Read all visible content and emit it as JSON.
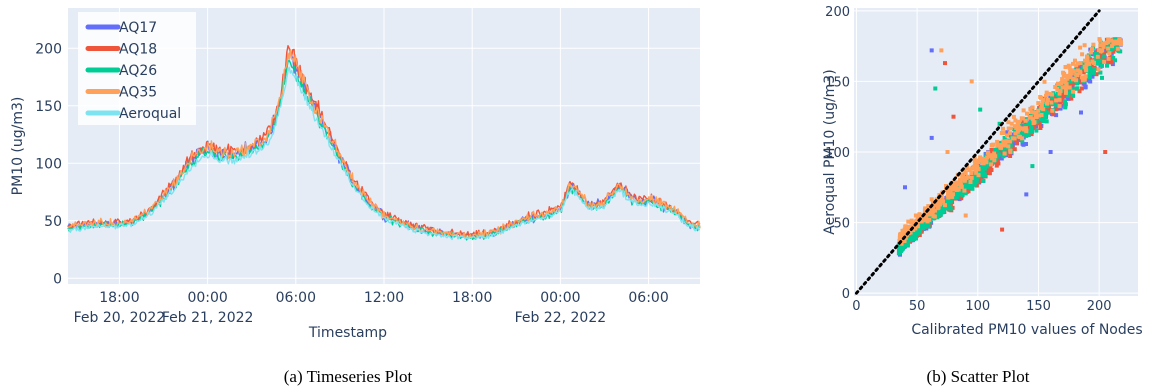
{
  "colors": {
    "plot_bg": "#E5ECF6",
    "grid": "#FFFFFF",
    "AQ17": "#636EFA",
    "AQ18": "#EF553B",
    "AQ26": "#00CC96",
    "AQ35": "#FFA15A",
    "Aeroqual": "#7EE3F0",
    "identity_line": "#000000"
  },
  "chart_data": [
    {
      "type": "line",
      "caption": "(a) Timeseries Plot",
      "xlabel": "Timestamp",
      "ylabel": "PM10 (ug/m3)",
      "ylim": [
        -5,
        235
      ],
      "yticks": [
        0,
        50,
        100,
        150,
        200
      ],
      "xlim": [
        14.5,
        57.5
      ],
      "x_unit": "hours since Feb 20, 2022 00:00",
      "xticks": [
        {
          "x": 18,
          "label": "18:00",
          "sub": "Feb 20, 2022"
        },
        {
          "x": 24,
          "label": "00:00",
          "sub": "Feb 21, 2022"
        },
        {
          "x": 30,
          "label": "06:00",
          "sub": ""
        },
        {
          "x": 36,
          "label": "12:00",
          "sub": ""
        },
        {
          "x": 42,
          "label": "18:00",
          "sub": ""
        },
        {
          "x": 48,
          "label": "00:00",
          "sub": "Feb 22, 2022"
        },
        {
          "x": 54,
          "label": "06:00",
          "sub": ""
        }
      ],
      "legend_position": "top-left",
      "grid": true,
      "series": [
        {
          "name": "AQ17",
          "offset": 4,
          "noise": 6
        },
        {
          "name": "AQ18",
          "offset": 6,
          "noise": 6
        },
        {
          "name": "AQ26",
          "offset": 2,
          "noise": 5
        },
        {
          "name": "AQ35",
          "offset": 5,
          "noise": 6
        },
        {
          "name": "Aeroqual",
          "offset": 0,
          "noise": 4
        }
      ],
      "x": [
        14.5,
        16,
        18,
        19,
        20,
        21,
        22,
        23,
        24,
        25,
        26,
        27,
        28,
        28.5,
        29,
        29.5,
        30,
        31,
        32,
        33,
        34,
        35,
        36,
        38,
        40,
        42,
        43,
        44,
        45,
        46,
        47,
        48,
        48.7,
        49.3,
        50,
        51,
        52,
        52.7,
        53.3,
        54,
        55,
        56,
        56.7,
        57.5
      ],
      "baseline": [
        42,
        45,
        45,
        47,
        55,
        68,
        82,
        100,
        108,
        103,
        103,
        108,
        115,
        130,
        150,
        185,
        175,
        148,
        125,
        100,
        78,
        63,
        52,
        42,
        37,
        35,
        36,
        40,
        46,
        50,
        53,
        57,
        78,
        70,
        60,
        62,
        77,
        68,
        63,
        65,
        60,
        55,
        45,
        43
      ]
    },
    {
      "type": "scatter",
      "caption": "(b) Scatter Plot",
      "xlabel": "Calibrated PM10 values of Nodes",
      "ylabel": "Aeroqual PM10 (ug/m3)",
      "xlim": [
        -2,
        232
      ],
      "ylim": [
        -2,
        202
      ],
      "xticks": [
        0,
        50,
        100,
        150,
        200
      ],
      "yticks": [
        0,
        50,
        100,
        150,
        200
      ],
      "grid": true,
      "identity_line": {
        "from": [
          0,
          0
        ],
        "to": [
          200,
          200
        ]
      },
      "series_order": [
        "AQ17",
        "AQ18",
        "AQ26",
        "AQ35"
      ],
      "main_band": {
        "x_start": 35,
        "x_end": 218,
        "y_start": 32,
        "y_end": 180,
        "spread": 12,
        "points_per_series": 450
      },
      "outliers": [
        [
          62,
          172,
          "AQ17"
        ],
        [
          70,
          172,
          "AQ35"
        ],
        [
          73,
          163,
          "AQ18"
        ],
        [
          65,
          145,
          "AQ26"
        ],
        [
          62,
          110,
          "AQ17"
        ],
        [
          75,
          100,
          "AQ35"
        ],
        [
          110,
          85,
          "AQ18"
        ],
        [
          118,
          120,
          "AQ26"
        ],
        [
          160,
          100,
          "AQ17"
        ],
        [
          205,
          100,
          "AQ18"
        ],
        [
          95,
          150,
          "AQ35"
        ],
        [
          40,
          75,
          "AQ17"
        ],
        [
          120,
          45,
          "AQ18"
        ],
        [
          90,
          55,
          "AQ35"
        ],
        [
          140,
          70,
          "AQ17"
        ],
        [
          102,
          130,
          "AQ26"
        ],
        [
          80,
          125,
          "AQ18"
        ],
        [
          185,
          128,
          "AQ17"
        ],
        [
          145,
          90,
          "AQ26"
        ]
      ]
    }
  ]
}
